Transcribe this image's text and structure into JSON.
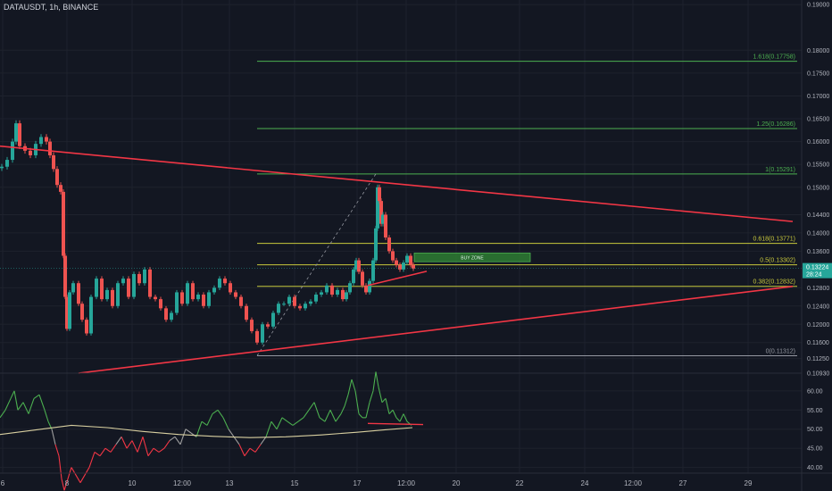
{
  "header": {
    "symbol": "DATAUSDT",
    "interval": "1h",
    "exchange": "BINANCE"
  },
  "colors": {
    "background": "#131722",
    "grid": "#1e222d",
    "axis_text": "#b2b5be",
    "fib_green": "#4caf50",
    "fib_yellow": "#c8c83c",
    "trendline": "#f23645",
    "candle_up": "#26a69a",
    "candle_down": "#ef5350",
    "buy_zone": "#2e7d32",
    "price_tag": "#26a69a",
    "rsi_high": "#4caf50",
    "rsi_low": "#f23645",
    "rsi_ma": "#d8cfa0"
  },
  "chart_data": [
    {
      "type": "candlestick",
      "title": "",
      "y_axis": {
        "ticks": [
          "0.19000",
          "0.18000",
          "0.17500",
          "0.17000",
          "0.16500",
          "0.16000",
          "0.15500",
          "0.15000",
          "0.14400",
          "0.14000",
          "0.13600",
          "0.12800",
          "0.12400",
          "0.12000",
          "0.11600",
          "0.11250",
          "0.10930"
        ],
        "ylim": [
          0.1093,
          0.191
        ]
      },
      "x_axis": {
        "ticks": [
          "6",
          "8",
          "10",
          "12:00",
          "13",
          "15",
          "17",
          "12:00",
          "20",
          "22",
          "24",
          "12:00",
          "27",
          "29"
        ]
      },
      "fib_levels": [
        {
          "label": "1.618(0.17758)",
          "value": 0.17758,
          "color": "green"
        },
        {
          "label": "1.25(0.16286)",
          "value": 0.16286,
          "color": "green"
        },
        {
          "label": "1(0.15291)",
          "value": 0.15291,
          "color": "green"
        },
        {
          "label": "0.618(0.13771)",
          "value": 0.13771,
          "color": "yellow"
        },
        {
          "label": "0.5(0.13302)",
          "value": 0.13302,
          "color": "yellow"
        },
        {
          "label": "0.382(0.12832)",
          "value": 0.12832,
          "color": "yellow"
        },
        {
          "label": "0(0.11312)",
          "value": 0.11312,
          "color": "gray"
        }
      ],
      "annotations": {
        "buy_zone": "BUY ZONE"
      },
      "price_tag": {
        "value": "0.13224",
        "countdown": "28:24"
      },
      "series": [
        {
          "name": "",
          "close_points": [
            [
              0,
              0.1545
            ],
            [
              6,
              0.156
            ],
            [
              12,
              0.16
            ],
            [
              16,
              0.164
            ],
            [
              20,
              0.159
            ],
            [
              26,
              0.158
            ],
            [
              32,
              0.157
            ],
            [
              38,
              0.1595
            ],
            [
              44,
              0.161
            ],
            [
              50,
              0.16
            ],
            [
              54,
              0.157
            ],
            [
              58,
              0.154
            ],
            [
              62,
              0.1505
            ],
            [
              66,
              0.149
            ],
            [
              69,
              0.135
            ],
            [
              71,
              0.126
            ],
            [
              73,
              0.119
            ],
            [
              76,
              0.127
            ],
            [
              80,
              0.129
            ],
            [
              86,
              0.1245
            ],
            [
              90,
              0.121
            ],
            [
              95,
              0.118
            ],
            [
              100,
              0.126
            ],
            [
              106,
              0.13
            ],
            [
              112,
              0.1255
            ],
            [
              118,
              0.1275
            ],
            [
              124,
              0.124
            ],
            [
              130,
              0.129
            ],
            [
              136,
              0.13
            ],
            [
              142,
              0.126
            ],
            [
              148,
              0.131
            ],
            [
              154,
              0.129
            ],
            [
              160,
              0.132
            ],
            [
              166,
              0.126
            ],
            [
              172,
              0.1255
            ],
            [
              178,
              0.1235
            ],
            [
              184,
              0.121
            ],
            [
              190,
              0.1225
            ],
            [
              196,
              0.127
            ],
            [
              202,
              0.1245
            ],
            [
              208,
              0.129
            ],
            [
              214,
              0.1255
            ],
            [
              220,
              0.1265
            ],
            [
              226,
              0.124
            ],
            [
              232,
              0.127
            ],
            [
              238,
              0.128
            ],
            [
              244,
              0.13
            ],
            [
              250,
              0.129
            ],
            [
              256,
              0.127
            ],
            [
              262,
              0.126
            ],
            [
              268,
              0.124
            ],
            [
              274,
              0.121
            ],
            [
              280,
              0.1185
            ],
            [
              286,
              0.116
            ],
            [
              292,
              0.12
            ],
            [
              298,
              0.1195
            ],
            [
              304,
              0.1225
            ],
            [
              310,
              0.1245
            ],
            [
              316,
              0.1245
            ],
            [
              322,
              0.126
            ],
            [
              328,
              0.124
            ],
            [
              334,
              0.1235
            ],
            [
              340,
              0.1245
            ],
            [
              346,
              0.125
            ],
            [
              352,
              0.1265
            ],
            [
              358,
              0.127
            ],
            [
              364,
              0.1285
            ],
            [
              370,
              0.1265
            ],
            [
              376,
              0.1275
            ],
            [
              382,
              0.1255
            ],
            [
              386,
              0.127
            ],
            [
              390,
              0.129
            ],
            [
              394,
              0.132
            ],
            [
              397,
              0.134
            ],
            [
              400,
              0.1315
            ],
            [
              404,
              0.1285
            ],
            [
              408,
              0.127
            ],
            [
              412,
              0.1295
            ],
            [
              416,
              0.134
            ],
            [
              419,
              0.141
            ],
            [
              421,
              0.15
            ],
            [
              423,
              0.147
            ],
            [
              425,
              0.142
            ],
            [
              427,
              0.144
            ],
            [
              430,
              0.139
            ],
            [
              434,
              0.136
            ],
            [
              438,
              0.134
            ],
            [
              442,
              0.133
            ],
            [
              446,
              0.132
            ],
            [
              450,
              0.1335
            ],
            [
              454,
              0.135
            ],
            [
              458,
              0.133
            ],
            [
              461,
              0.1322
            ]
          ]
        }
      ],
      "trendlines": [
        {
          "name": "upper",
          "from": [
            0,
            0.159
          ],
          "to": [
            888,
            0.1425
          ]
        },
        {
          "name": "lower",
          "from": [
            88,
            0.1093
          ],
          "to": [
            888,
            0.1283
          ]
        },
        {
          "name": "support",
          "from": [
            412,
            0.1285
          ],
          "to": [
            478,
            0.1316
          ]
        }
      ]
    },
    {
      "type": "line",
      "title": "",
      "y_axis": {
        "ticks": [
          "60.00",
          "55.00",
          "50.00",
          "45.00",
          "40.00"
        ],
        "ylim": [
          38.5,
          63
        ]
      },
      "series": [
        {
          "name": "",
          "values": [
            [
              0,
              53
            ],
            [
              6,
              55
            ],
            [
              12,
              58
            ],
            [
              16,
              60
            ],
            [
              20,
              55
            ],
            [
              26,
              57
            ],
            [
              32,
              54
            ],
            [
              38,
              58
            ],
            [
              44,
              59
            ],
            [
              50,
              55
            ],
            [
              54,
              52
            ],
            [
              58,
              50
            ],
            [
              62,
              46
            ],
            [
              66,
              43
            ],
            [
              69,
              37
            ],
            [
              72,
              34
            ],
            [
              80,
              40
            ],
            [
              90,
              36
            ],
            [
              100,
              40
            ],
            [
              106,
              44
            ],
            [
              112,
              43
            ],
            [
              118,
              45
            ],
            [
              124,
              44
            ],
            [
              130,
              46
            ],
            [
              136,
              48
            ],
            [
              142,
              45
            ],
            [
              148,
              47
            ],
            [
              154,
              44
            ],
            [
              160,
              48
            ],
            [
              166,
              43
            ],
            [
              172,
              45
            ],
            [
              178,
              44
            ],
            [
              184,
              45
            ],
            [
              190,
              47
            ],
            [
              196,
              48
            ],
            [
              202,
              46
            ],
            [
              208,
              50
            ],
            [
              214,
              49
            ],
            [
              220,
              48
            ],
            [
              226,
              52
            ],
            [
              232,
              51
            ],
            [
              238,
              54
            ],
            [
              244,
              55
            ],
            [
              250,
              53
            ],
            [
              256,
              50
            ],
            [
              262,
              48
            ],
            [
              268,
              46
            ],
            [
              274,
              43
            ],
            [
              280,
              45
            ],
            [
              286,
              44
            ],
            [
              292,
              46
            ],
            [
              298,
              48
            ],
            [
              304,
              52
            ],
            [
              310,
              50
            ],
            [
              316,
              53
            ],
            [
              322,
              52
            ],
            [
              328,
              51
            ],
            [
              334,
              52
            ],
            [
              340,
              53
            ],
            [
              346,
              55
            ],
            [
              352,
              57
            ],
            [
              358,
              53
            ],
            [
              364,
              52
            ],
            [
              370,
              55
            ],
            [
              376,
              52
            ],
            [
              382,
              54
            ],
            [
              386,
              56
            ],
            [
              390,
              59
            ],
            [
              394,
              63
            ],
            [
              398,
              60
            ],
            [
              402,
              54
            ],
            [
              406,
              53
            ],
            [
              410,
              53
            ],
            [
              414,
              57
            ],
            [
              418,
              60
            ],
            [
              421,
              65
            ],
            [
              424,
              61
            ],
            [
              428,
              57
            ],
            [
              432,
              58
            ],
            [
              436,
              54
            ],
            [
              440,
              55
            ],
            [
              444,
              53
            ],
            [
              448,
              52
            ],
            [
              452,
              54
            ],
            [
              456,
              52
            ],
            [
              461,
              51
            ]
          ]
        },
        {
          "name": "",
          "values": [
            [
              0,
              48.6
            ],
            [
              40,
              49.8
            ],
            [
              80,
              51.0
            ],
            [
              120,
              50.4
            ],
            [
              160,
              49.4
            ],
            [
              200,
              48.6
            ],
            [
              240,
              48.1
            ],
            [
              280,
              47.8
            ],
            [
              320,
              48.0
            ],
            [
              360,
              48.5
            ],
            [
              400,
              49.2
            ],
            [
              430,
              49.8
            ],
            [
              462,
              50.4
            ]
          ]
        }
      ],
      "trendline": {
        "from": [
          412,
          51.5
        ],
        "to": [
          474,
          51.2
        ]
      }
    }
  ]
}
